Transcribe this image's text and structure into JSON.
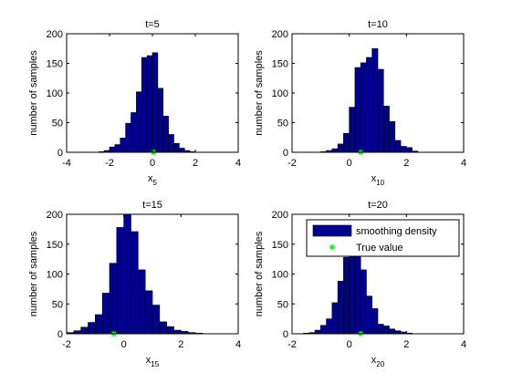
{
  "colors": {
    "bar_fill": "#00008f",
    "bar_edge": "#000000",
    "true_value_marker": "#00ff00",
    "axis": "#000000",
    "background": "#ffffff"
  },
  "chart_data": [
    {
      "type": "bar",
      "title": "t=5",
      "xlabel": "x",
      "xlabel_subscript": "5",
      "ylabel": "number of samples",
      "xlim": [
        -4,
        4
      ],
      "ylim": [
        0,
        200
      ],
      "xticks": [
        -4,
        -2,
        0,
        2,
        4
      ],
      "yticks": [
        0,
        50,
        100,
        150,
        200
      ],
      "bin_width": 0.25,
      "bin_centers": [
        -2.375,
        -2.125,
        -1.875,
        -1.625,
        -1.375,
        -1.125,
        -0.875,
        -0.625,
        -0.375,
        -0.125,
        0.125,
        0.375,
        0.625,
        0.875,
        1.125,
        1.375,
        1.625,
        1.875
      ],
      "values": [
        1,
        3,
        9,
        13,
        24,
        49,
        67,
        102,
        160,
        163,
        168,
        108,
        61,
        30,
        15,
        7,
        3,
        1
      ],
      "true_value": 0.05,
      "grid": false
    },
    {
      "type": "bar",
      "title": "t=10",
      "xlabel": "x",
      "xlabel_subscript": "10",
      "ylabel": "number of samples",
      "xlim": [
        -2,
        4
      ],
      "ylim": [
        0,
        200
      ],
      "xticks": [
        -2,
        0,
        2,
        4
      ],
      "yticks": [
        0,
        50,
        100,
        150,
        200
      ],
      "bin_width": 0.2,
      "bin_centers": [
        -0.9,
        -0.7,
        -0.5,
        -0.3,
        -0.1,
        0.1,
        0.3,
        0.5,
        0.7,
        0.9,
        1.1,
        1.3,
        1.5,
        1.7,
        1.9,
        2.1,
        2.3
      ],
      "values": [
        1,
        3,
        6,
        14,
        32,
        76,
        143,
        151,
        160,
        175,
        140,
        78,
        52,
        20,
        10,
        8,
        2
      ],
      "true_value": 0.4,
      "grid": false
    },
    {
      "type": "bar",
      "title": "t=15",
      "xlabel": "x",
      "xlabel_subscript": "15",
      "ylabel": "number of samples",
      "xlim": [
        -2,
        4
      ],
      "ylim": [
        0,
        200
      ],
      "xticks": [
        -2,
        0,
        2,
        4
      ],
      "yticks": [
        0,
        50,
        100,
        150,
        200
      ],
      "bin_width": 0.25,
      "bin_centers": [
        -1.875,
        -1.625,
        -1.375,
        -1.125,
        -0.875,
        -0.625,
        -0.375,
        -0.125,
        0.125,
        0.375,
        0.625,
        0.875,
        1.125,
        1.375,
        1.625,
        1.875,
        2.125,
        2.375,
        2.625
      ],
      "values": [
        2,
        5,
        11,
        19,
        32,
        68,
        118,
        178,
        210,
        171,
        107,
        72,
        48,
        20,
        12,
        6,
        4,
        2,
        1
      ],
      "true_value": -0.35,
      "grid": false
    },
    {
      "type": "bar",
      "title": "t=20",
      "xlabel": "x",
      "xlabel_subscript": "20",
      "ylabel": "number of samples",
      "xlim": [
        -2,
        4
      ],
      "ylim": [
        0,
        200
      ],
      "xticks": [
        -2,
        0,
        2,
        4
      ],
      "yticks": [
        0,
        50,
        100,
        150,
        200
      ],
      "bin_width": 0.2,
      "bin_centers": [
        -1.5,
        -1.3,
        -1.1,
        -0.9,
        -0.7,
        -0.5,
        -0.3,
        -0.1,
        0.1,
        0.3,
        0.5,
        0.7,
        0.9,
        1.1,
        1.3,
        1.5,
        1.7,
        1.9,
        2.1
      ],
      "values": [
        1,
        2,
        6,
        14,
        25,
        52,
        88,
        128,
        162,
        152,
        107,
        63,
        42,
        16,
        13,
        8,
        5,
        3,
        1
      ],
      "true_value": 0.4,
      "grid": false,
      "legend": {
        "placement": "top-right",
        "entries": [
          "smoothing density",
          "True value"
        ]
      }
    }
  ]
}
